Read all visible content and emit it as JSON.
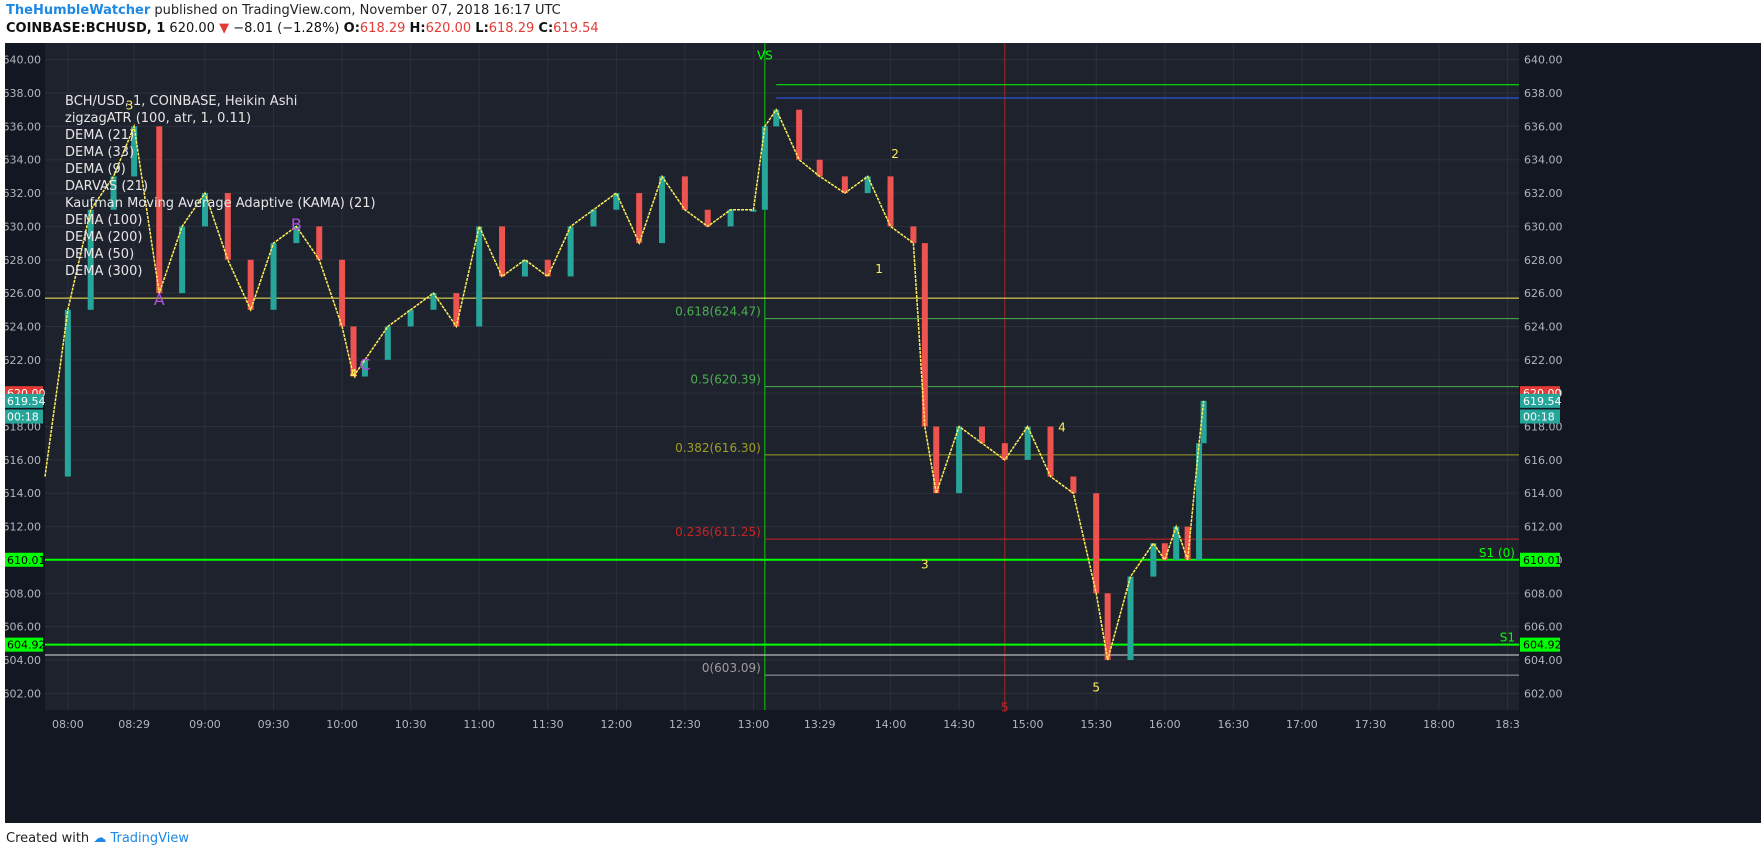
{
  "header": {
    "publisher": "TheHumbleWatcher",
    "published_text": "published on TradingView.com, November 07, 2018 16:17 UTC"
  },
  "ticker": {
    "symbol": "COINBASE:BCHUSD, 1",
    "last": "620.00",
    "change": "−8.01 (−1.28%)",
    "open_label": "O:",
    "open": "618.29",
    "high_label": "H:",
    "high": "620.00",
    "low_label": "L:",
    "low": "618.29",
    "close_label": "C:",
    "close": "619.54"
  },
  "legend": [
    "BCH/USD, 1, COINBASE, Heikin Ashi",
    "zigzagATR (100, atr, 1, 0.11)",
    "DEMA (21)",
    "DEMA (33)",
    "DEMA (9)",
    "DARVAS (21)",
    "Kaufman Moving Average Adaptive (KAMA) (21)",
    "DEMA (100)",
    "DEMA (200)",
    "DEMA (50)",
    "DEMA (300)"
  ],
  "footer": {
    "created_with": "Created with",
    "brand": "TradingView"
  },
  "colors": {
    "background": "#1e222d",
    "grid": "#2c303c",
    "axis_text": "#b2b5be",
    "candle_up": "#26a69a",
    "candle_down": "#ef5350",
    "bright_green": "#00ff00",
    "red_line": "#cc2222",
    "yellow": "#ffee58",
    "blue": "#2962ff",
    "purple": "#b44fe0"
  },
  "chart_data": {
    "type": "line",
    "title": "BCH/USD, 1, COINBASE, Heikin Ashi",
    "y_axis": {
      "ylim": [
        601.0,
        641.0
      ],
      "ticks": [
        602,
        604,
        606,
        608,
        610,
        612,
        614,
        616,
        618,
        620,
        622,
        624,
        626,
        628,
        630,
        632,
        634,
        636,
        638,
        640
      ],
      "tick_format": "2dp"
    },
    "x_axis": {
      "xlim": [
        "07:50",
        "18:35"
      ],
      "ticks": [
        "08:00",
        "08:29",
        "09:00",
        "09:30",
        "10:00",
        "10:30",
        "11:00",
        "11:30",
        "12:00",
        "12:30",
        "13:00",
        "13:29",
        "14:00",
        "14:30",
        "15:00",
        "15:30",
        "16:00",
        "16:30",
        "17:00",
        "17:30",
        "18:00",
        "18:3"
      ]
    },
    "price_series": {
      "name": "BCH/USD",
      "x": [
        "07:50",
        "08:00",
        "08:10",
        "08:20",
        "08:29",
        "08:40",
        "08:50",
        "09:00",
        "09:10",
        "09:20",
        "09:30",
        "09:40",
        "09:50",
        "10:00",
        "10:05",
        "10:10",
        "10:20",
        "10:30",
        "10:40",
        "10:50",
        "11:00",
        "11:10",
        "11:20",
        "11:30",
        "11:40",
        "11:50",
        "12:00",
        "12:10",
        "12:20",
        "12:30",
        "12:40",
        "12:50",
        "13:00",
        "13:05",
        "13:10",
        "13:20",
        "13:29",
        "13:40",
        "13:50",
        "14:00",
        "14:10",
        "14:15",
        "14:20",
        "14:30",
        "14:40",
        "14:50",
        "15:00",
        "15:10",
        "15:20",
        "15:30",
        "15:35",
        "15:45",
        "15:55",
        "16:00",
        "16:05",
        "16:10",
        "16:15",
        "16:17"
      ],
      "values": [
        615,
        625,
        631,
        633,
        636,
        626,
        630,
        632,
        628,
        625,
        629,
        630,
        628,
        624,
        621,
        622,
        624,
        625,
        626,
        624,
        630,
        627,
        628,
        627,
        630,
        631,
        632,
        629,
        633,
        631,
        630,
        631,
        631,
        636,
        637,
        634,
        633,
        632,
        633,
        630,
        629,
        618,
        614,
        618,
        617,
        616,
        618,
        615,
        614,
        608,
        604,
        609,
        611,
        610,
        612,
        610,
        617,
        619.54
      ]
    },
    "horizontal_lines": [
      {
        "label": "0.618(624.47)",
        "y": 624.47
      },
      {
        "label": "0.5(620.39)",
        "y": 620.39
      },
      {
        "label": "0.382(616.30)",
        "y": 616.3
      },
      {
        "label": "0.236(611.25)",
        "y": 611.25
      },
      {
        "label": "0(603.09)",
        "y": 603.09
      },
      {
        "label": "S1 (0)",
        "y": 610.01
      },
      {
        "label": "S1",
        "y": 604.92
      },
      {
        "label": "",
        "y": 638.5
      },
      {
        "label": "",
        "y": 637.7
      },
      {
        "label": "",
        "y": 625.7
      },
      {
        "label": "",
        "y": 604.3
      }
    ],
    "price_labels": [
      {
        "text": "620.00",
        "y": 620.0
      },
      {
        "text": "619.54",
        "y": 619.54
      },
      {
        "text": "00:18",
        "y": 618.6
      },
      {
        "text": "610.01",
        "y": 610.01
      },
      {
        "text": "604.92",
        "y": 604.92
      }
    ],
    "pattern_labels": [
      {
        "text": "A",
        "x": "08:40",
        "y": 625.3
      },
      {
        "text": "B",
        "x": "09:40",
        "y": 629.8
      },
      {
        "text": "C",
        "x": "10:10",
        "y": 621.4
      },
      {
        "text": "3",
        "x": "08:27",
        "y": 637.0
      },
      {
        "text": "4",
        "x": "10:05",
        "y": 620.9
      },
      {
        "text": "1",
        "x": "13:55",
        "y": 627.2
      },
      {
        "text": "2",
        "x": "14:02",
        "y": 634.1
      },
      {
        "text": "3",
        "x": "14:15",
        "y": 609.5
      },
      {
        "text": "4",
        "x": "15:15",
        "y": 617.7
      },
      {
        "text": "5",
        "x": "15:30",
        "y": 602.1
      },
      {
        "text": "5",
        "x": "14:50",
        "y": 600.9
      },
      {
        "text": "VS",
        "x": "13:05",
        "y": 640.0
      }
    ],
    "verticals": [
      {
        "x": "13:05"
      },
      {
        "x": "14:50"
      }
    ],
    "legend_position": "top-left",
    "grid": true
  }
}
